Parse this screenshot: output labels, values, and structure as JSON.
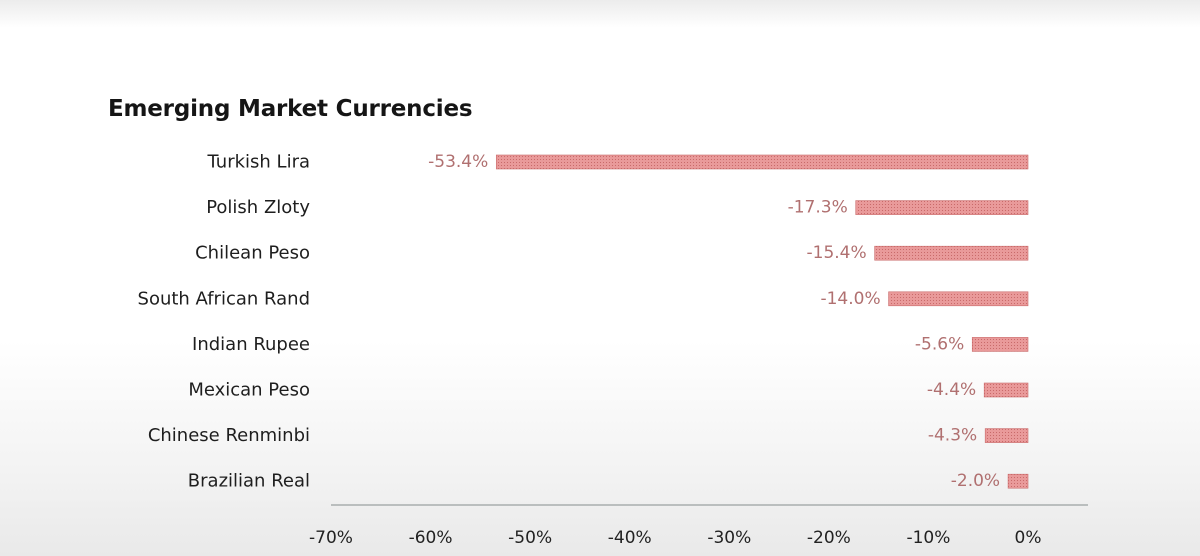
{
  "chart_data": {
    "type": "bar",
    "orientation": "horizontal",
    "title": "Emerging Market Currencies",
    "categories": [
      "Turkish Lira",
      "Polish Zloty",
      "Chilean Peso",
      "South African Rand",
      "Indian Rupee",
      "Mexican Peso",
      "Chinese Renminbi",
      "Brazilian Real"
    ],
    "values": [
      -53.4,
      -17.3,
      -15.4,
      -14.0,
      -5.6,
      -4.4,
      -4.3,
      -2.0
    ],
    "value_labels": [
      "-53.4%",
      "-17.3%",
      "-15.4%",
      "-14.0%",
      "-5.6%",
      "-4.4%",
      "-4.3%",
      "-2.0%"
    ],
    "xlim": [
      -70,
      0
    ],
    "x_ticks": [
      -70,
      -60,
      -50,
      -40,
      -30,
      -20,
      -10,
      0
    ],
    "x_tick_labels": [
      "-70%",
      "-60%",
      "-50%",
      "-40%",
      "-30%",
      "-20%",
      "-10%",
      "0%"
    ],
    "xlabel": "",
    "ylabel": "",
    "grid": false,
    "legend": "none",
    "bar_color": "#e99a9a",
    "bar_pattern_color": "#c96a6a",
    "value_label_color": "#b07070",
    "axis_color": "#9aa0a0"
  }
}
